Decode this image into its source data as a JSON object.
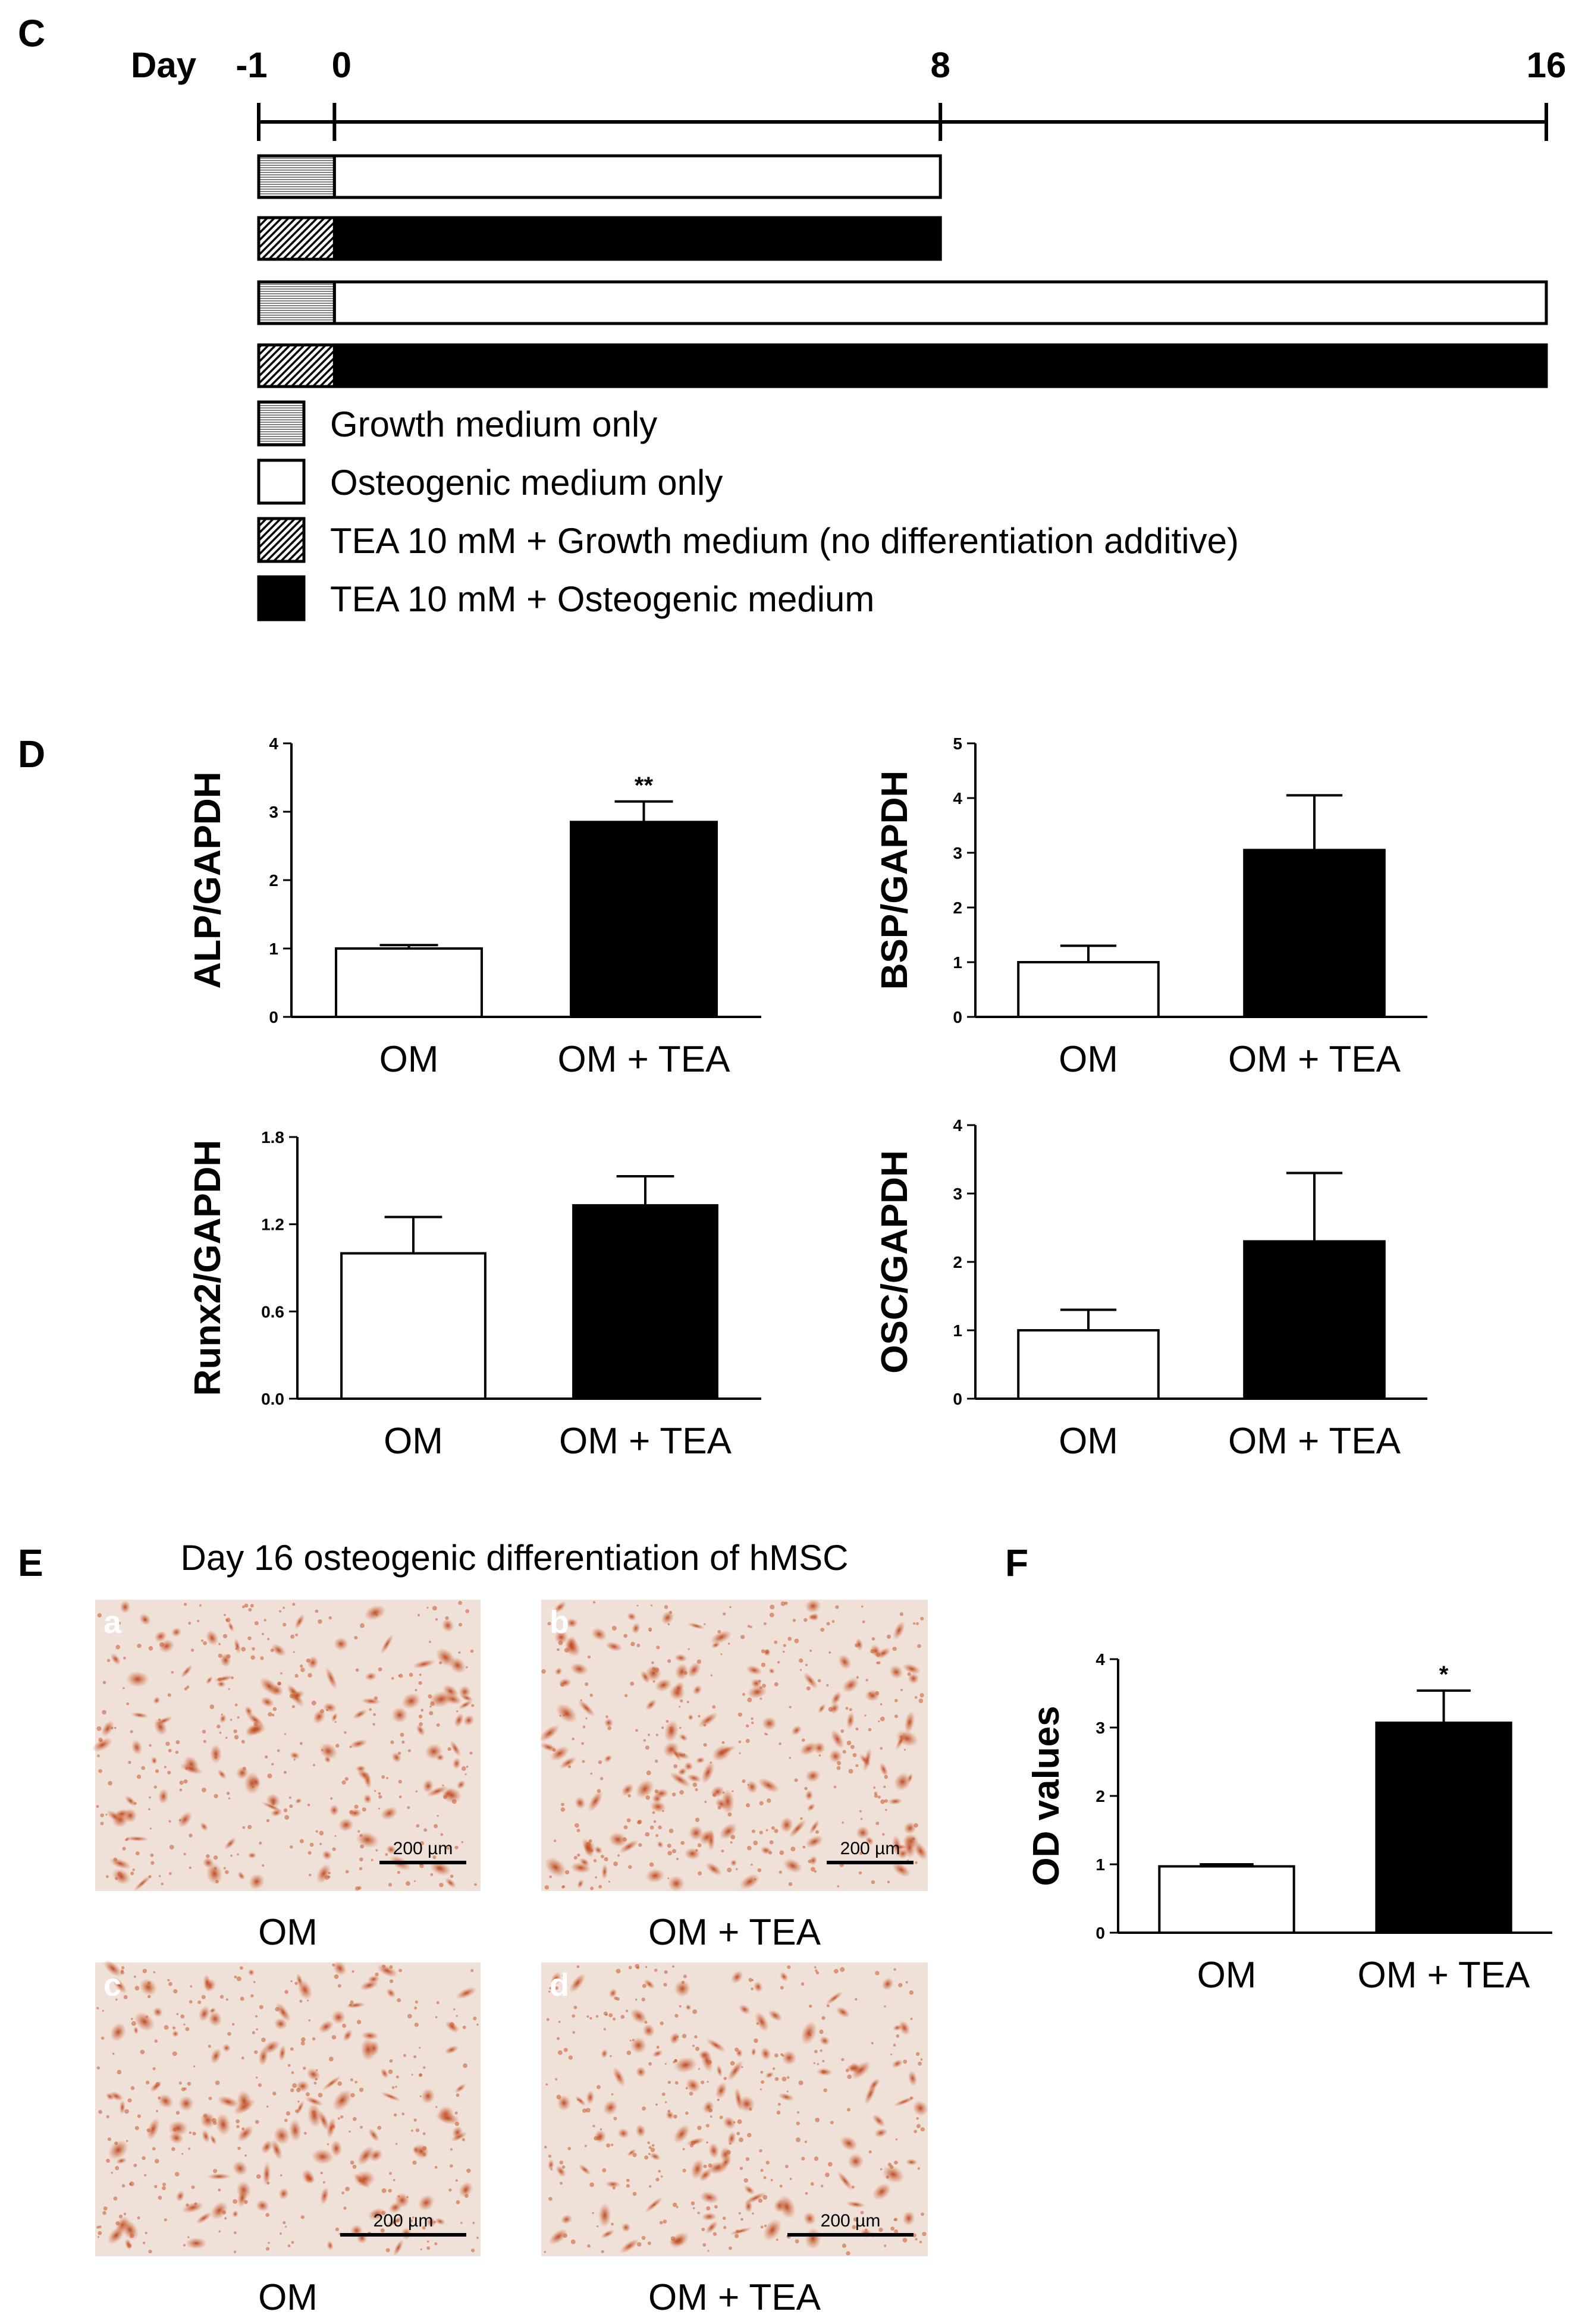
{
  "panels": {
    "c": "C",
    "d": "D",
    "e": "E",
    "f": "F"
  },
  "timeline": {
    "day_label": "Day",
    "ticks": [
      {
        "day": -1,
        "label": "-1"
      },
      {
        "day": 0,
        "label": "0"
      },
      {
        "day": 8,
        "label": "8"
      },
      {
        "day": 16,
        "label": "16"
      }
    ],
    "bars": [
      {
        "start": -1,
        "switch": 0,
        "end": 8,
        "pre": "growth",
        "main": "osteogenic"
      },
      {
        "start": -1,
        "switch": 0,
        "end": 8,
        "pre": "tea_growth",
        "main": "tea_osteogenic"
      },
      {
        "start": -1,
        "switch": 0,
        "end": 16,
        "pre": "growth",
        "main": "osteogenic"
      },
      {
        "start": -1,
        "switch": 0,
        "end": 16,
        "pre": "tea_growth",
        "main": "tea_osteogenic"
      }
    ],
    "legend": [
      {
        "key": "growth",
        "label": "Growth medium only"
      },
      {
        "key": "osteogenic",
        "label": "Osteogenic medium only"
      },
      {
        "key": "tea_growth",
        "label": "TEA 10 mM + Growth medium (no differentiation additive)"
      },
      {
        "key": "tea_osteogenic",
        "label": "TEA 10 mM + Osteogenic medium"
      }
    ]
  },
  "chart_data": [
    {
      "id": "alp",
      "type": "bar",
      "ylabel": "ALP/GAPDH",
      "categories": [
        "OM",
        "OM + TEA"
      ],
      "values": [
        1.0,
        2.85
      ],
      "errors": [
        0.05,
        0.3
      ],
      "ylim": [
        0,
        4
      ],
      "yticks": [
        "0",
        "1",
        "2",
        "3",
        "4"
      ],
      "annotations": [
        "",
        "**"
      ]
    },
    {
      "id": "bsp",
      "type": "bar",
      "ylabel": "BSP/GAPDH",
      "categories": [
        "OM",
        "OM + TEA"
      ],
      "values": [
        1.0,
        3.05
      ],
      "errors": [
        0.3,
        1.0
      ],
      "ylim": [
        0,
        5
      ],
      "yticks": [
        "0",
        "1",
        "2",
        "3",
        "4",
        "5"
      ],
      "annotations": [
        "",
        ""
      ]
    },
    {
      "id": "runx2",
      "type": "bar",
      "ylabel": "Runx2/GAPDH",
      "categories": [
        "OM",
        "OM + TEA"
      ],
      "values": [
        1.0,
        1.33
      ],
      "errors": [
        0.25,
        0.2
      ],
      "ylim": [
        0,
        1.8
      ],
      "yticks": [
        "0.0",
        "0.6",
        "1.2",
        "1.8"
      ],
      "annotations": [
        "",
        ""
      ]
    },
    {
      "id": "osc",
      "type": "bar",
      "ylabel": "OSC/GAPDH",
      "categories": [
        "OM",
        "OM + TEA"
      ],
      "values": [
        1.0,
        2.3
      ],
      "errors": [
        0.3,
        1.0
      ],
      "ylim": [
        0,
        4
      ],
      "yticks": [
        "0",
        "1",
        "2",
        "3",
        "4"
      ],
      "annotations": [
        "",
        ""
      ]
    },
    {
      "id": "od",
      "type": "bar",
      "ylabel": "OD values",
      "categories": [
        "OM",
        "OM + TEA"
      ],
      "values": [
        0.97,
        3.07
      ],
      "errors": [
        0.03,
        0.47
      ],
      "ylim": [
        0,
        4
      ],
      "yticks": [
        "0",
        "1",
        "2",
        "3",
        "4"
      ],
      "annotations": [
        "",
        "*"
      ]
    }
  ],
  "panel_e": {
    "title": "Day 16 osteogenic differentiation of hMSC",
    "images": [
      {
        "letter": "a",
        "caption": "OM",
        "scale": "200 µm"
      },
      {
        "letter": "b",
        "caption": "OM + TEA",
        "scale": "200 µm"
      },
      {
        "letter": "c",
        "caption": "OM",
        "scale": "200 µm"
      },
      {
        "letter": "d",
        "caption": "OM + TEA",
        "scale": "200 µm"
      }
    ]
  },
  "colors": {
    "om": "#ffffff",
    "om_tea": "#000000",
    "stain_bg": "#efe0d8",
    "stain_spot": "#c8582a"
  }
}
